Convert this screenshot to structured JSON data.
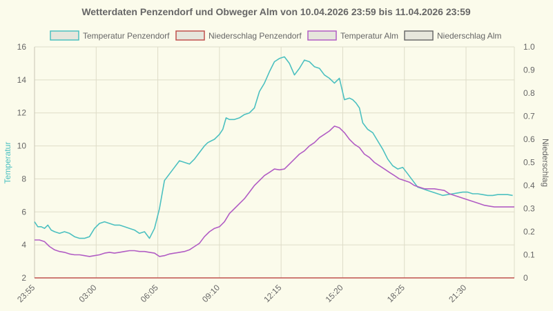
{
  "chart_data": {
    "type": "line",
    "title": "Wetterdaten Penzendorf und Obweger Alm von 10.04.2026 23:59 bis 11.04.2026 23:59",
    "x_tick_labels": [
      "23:55",
      "03:00",
      "06:05",
      "09:10",
      "12:15",
      "15:20",
      "18:25",
      "21:30"
    ],
    "x_tick_minutes": [
      0,
      185,
      370,
      555,
      740,
      925,
      1110,
      1295
    ],
    "x_range_minutes": [
      0,
      1440
    ],
    "y_left": {
      "label": "Temperatur",
      "range": [
        2,
        16
      ],
      "ticks": [
        "16",
        "14",
        "12",
        "10",
        "8",
        "6",
        "4",
        "2"
      ]
    },
    "y_right": {
      "label": "Niederschlag",
      "range": [
        0,
        1.0
      ],
      "ticks": [
        "1.0",
        "0.9",
        "0.8",
        "0.7",
        "0.6",
        "0.5",
        "0.4",
        "0.3",
        "0.2",
        "0.1",
        "0"
      ]
    },
    "grid": true,
    "legend_position": "top",
    "series": [
      {
        "name": "Temperatur Penzendorf",
        "axis": "left",
        "color": "#4bc0c0",
        "fill": "#e6e6dc",
        "x": [
          0,
          10,
          20,
          30,
          40,
          50,
          60,
          75,
          90,
          105,
          120,
          135,
          150,
          165,
          180,
          195,
          210,
          225,
          240,
          255,
          270,
          285,
          300,
          315,
          330,
          345,
          360,
          375,
          390,
          405,
          420,
          435,
          450,
          465,
          480,
          495,
          510,
          520,
          530,
          540,
          555,
          565,
          575,
          585,
          600,
          615,
          630,
          645,
          660,
          675,
          690,
          705,
          720,
          735,
          750,
          765,
          780,
          795,
          810,
          825,
          840,
          855,
          870,
          885,
          900,
          915,
          930,
          945,
          955,
          965,
          975,
          985,
          1000,
          1015,
          1030,
          1045,
          1060,
          1075,
          1090,
          1105,
          1120,
          1135,
          1150,
          1165,
          1180,
          1195,
          1210,
          1225,
          1240,
          1255,
          1270,
          1285,
          1300,
          1315,
          1330,
          1345,
          1360,
          1375,
          1390,
          1405,
          1420,
          1435
        ],
        "values": [
          5.4,
          5.1,
          5.1,
          5.0,
          5.2,
          4.9,
          4.8,
          4.7,
          4.8,
          4.7,
          4.5,
          4.4,
          4.4,
          4.5,
          5.0,
          5.3,
          5.4,
          5.3,
          5.2,
          5.2,
          5.1,
          5.0,
          4.9,
          4.7,
          4.8,
          4.4,
          5.0,
          6.2,
          7.9,
          8.3,
          8.7,
          9.1,
          9.0,
          8.9,
          9.2,
          9.6,
          10.0,
          10.2,
          10.3,
          10.4,
          10.7,
          11.0,
          11.7,
          11.6,
          11.6,
          11.7,
          11.9,
          12.0,
          12.3,
          13.3,
          13.8,
          14.5,
          15.1,
          15.3,
          15.4,
          15.0,
          14.3,
          14.7,
          15.2,
          15.1,
          14.8,
          14.7,
          14.3,
          14.1,
          13.8,
          14.1,
          12.8,
          12.9,
          12.8,
          12.6,
          12.3,
          11.4,
          11.0,
          10.8,
          10.3,
          9.8,
          9.2,
          8.8,
          8.6,
          8.7,
          8.3,
          7.9,
          7.5,
          7.4,
          7.3,
          7.2,
          7.1,
          7.0,
          7.05,
          7.1,
          7.15,
          7.2,
          7.2,
          7.1,
          7.1,
          7.05,
          7.0,
          7.0,
          7.05,
          7.05,
          7.05,
          7.0
        ],
        "shown_until_minute": 1440
      },
      {
        "name": "Niederschlag Penzendorf",
        "axis": "right",
        "color": "#c0504d",
        "fill": "#e6e6dc",
        "x": [
          0,
          1440
        ],
        "values": [
          0,
          0
        ]
      },
      {
        "name": "Temperatur Alm",
        "axis": "left",
        "color": "#b15cc4",
        "fill": "#e6e6dc",
        "x": [
          0,
          15,
          30,
          45,
          60,
          75,
          90,
          105,
          120,
          135,
          150,
          165,
          180,
          195,
          210,
          225,
          240,
          255,
          270,
          285,
          300,
          315,
          330,
          345,
          360,
          375,
          390,
          405,
          420,
          435,
          450,
          465,
          480,
          495,
          510,
          525,
          540,
          555,
          570,
          585,
          600,
          615,
          630,
          645,
          660,
          675,
          690,
          705,
          720,
          735,
          750,
          765,
          780,
          795,
          810,
          825,
          840,
          855,
          870,
          885,
          900,
          915,
          930,
          945,
          960,
          975,
          990,
          1005,
          1020,
          1035,
          1050,
          1065,
          1080,
          1095,
          1110,
          1125,
          1140,
          1155,
          1170,
          1185,
          1200,
          1215,
          1230,
          1245,
          1260,
          1275,
          1290,
          1305,
          1320,
          1335,
          1350,
          1365,
          1380,
          1395,
          1410,
          1425,
          1440
        ],
        "values": [
          4.3,
          4.3,
          4.2,
          3.9,
          3.7,
          3.6,
          3.55,
          3.45,
          3.4,
          3.4,
          3.35,
          3.3,
          3.35,
          3.4,
          3.5,
          3.55,
          3.5,
          3.55,
          3.6,
          3.65,
          3.65,
          3.6,
          3.6,
          3.55,
          3.5,
          3.3,
          3.35,
          3.45,
          3.5,
          3.55,
          3.6,
          3.7,
          3.9,
          4.1,
          4.5,
          4.8,
          5.0,
          5.1,
          5.4,
          5.9,
          6.2,
          6.5,
          6.8,
          7.2,
          7.6,
          7.9,
          8.2,
          8.4,
          8.6,
          8.55,
          8.6,
          8.9,
          9.2,
          9.5,
          9.7,
          10.0,
          10.2,
          10.5,
          10.7,
          10.9,
          11.2,
          11.1,
          10.8,
          10.4,
          10.1,
          9.9,
          9.5,
          9.3,
          9.0,
          8.8,
          8.6,
          8.4,
          8.2,
          8.0,
          7.9,
          7.8,
          7.6,
          7.5,
          7.4,
          7.4,
          7.4,
          7.35,
          7.3,
          7.1,
          7.0,
          6.9,
          6.8,
          6.7,
          6.6,
          6.5,
          6.4,
          6.35,
          6.3,
          6.3,
          6.3,
          6.3,
          6.3
        ],
        "shown_until_minute": 1440
      },
      {
        "name": "Niederschlag Alm",
        "axis": "right",
        "color": "#6b6b6b",
        "fill": "#e6e6dc",
        "x": [],
        "values": []
      }
    ]
  }
}
